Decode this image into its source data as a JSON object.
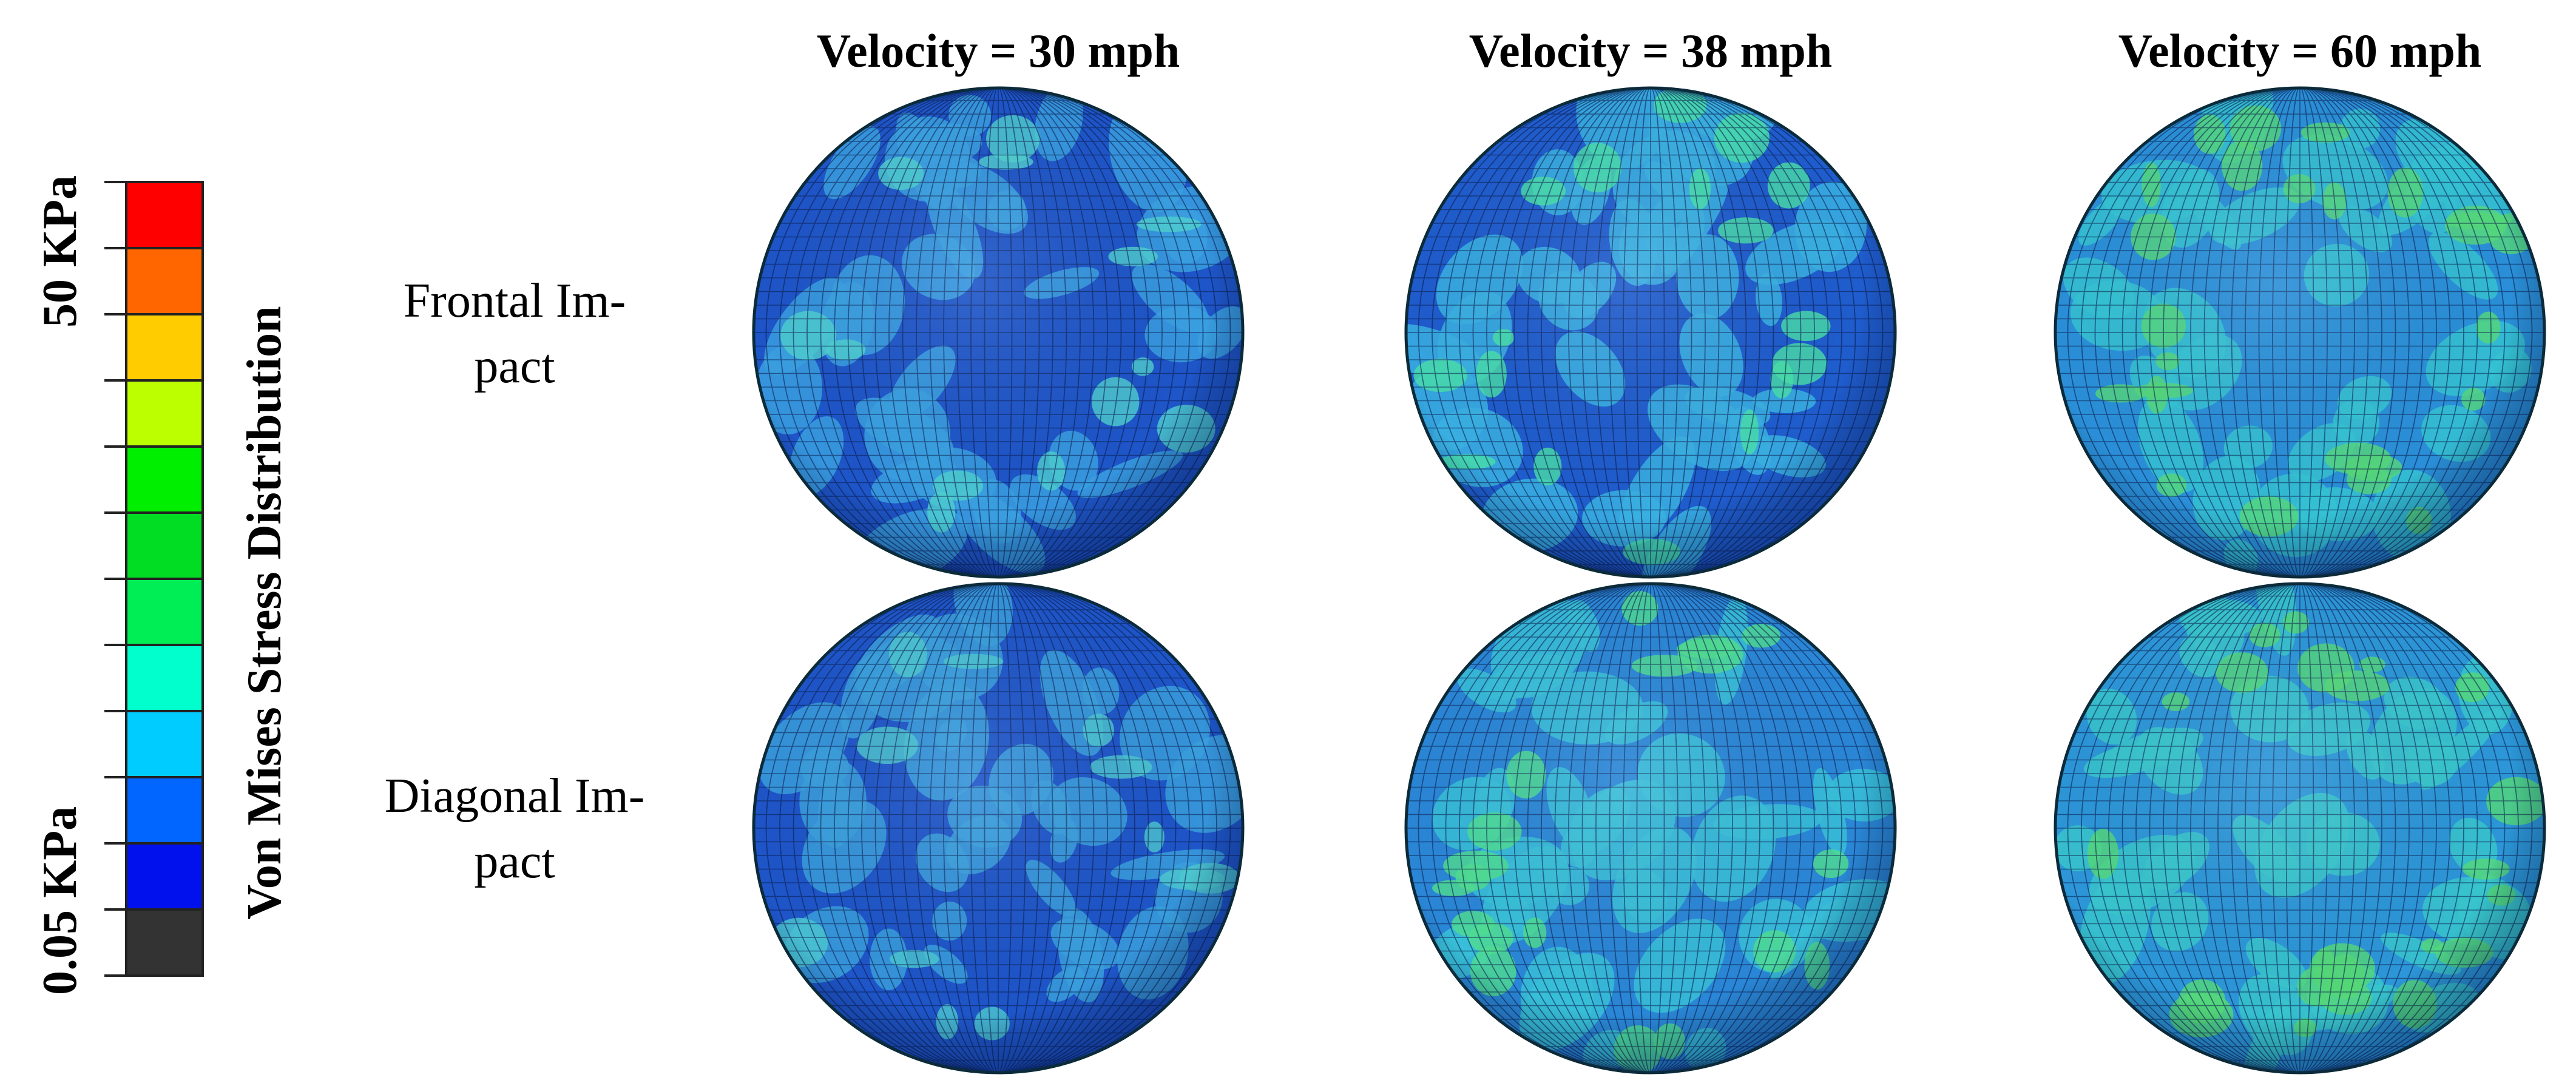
{
  "legend": {
    "title": "Von Mises Stress Distribution",
    "max_label": "50 KPa",
    "min_label": "0.05 KPa",
    "colors": [
      "#ff0000",
      "#ff6600",
      "#ffcc00",
      "#bbff00",
      "#00ee00",
      "#00dd22",
      "#00ee55",
      "#00ffcc",
      "#00ccff",
      "#0066ff",
      "#0011ee",
      "#333333"
    ]
  },
  "columns": [
    {
      "label": "Velocity = 30 mph"
    },
    {
      "label": "Velocity = 38 mph"
    },
    {
      "label": "Velocity = 60 mph"
    }
  ],
  "rows": [
    {
      "label_line1": "Frontal Im-",
      "label_line2": "pact"
    },
    {
      "label_line1": "Diagonal Im-",
      "label_line2": "pact"
    }
  ],
  "panels": [
    {
      "row": 0,
      "col": 0,
      "base": "#1e55c8",
      "light": "#3aa0e0",
      "hot": "#4fd0d0",
      "stress": 0.15
    },
    {
      "row": 0,
      "col": 1,
      "base": "#1f5ccd",
      "light": "#3ab0e2",
      "hot": "#49e0a8",
      "stress": 0.3
    },
    {
      "row": 0,
      "col": 2,
      "base": "#2a8fd8",
      "light": "#35c2d2",
      "hot": "#55d77a",
      "stress": 0.55
    },
    {
      "row": 1,
      "col": 0,
      "base": "#1e55c8",
      "light": "#3a9fdc",
      "hot": "#4cc8d0",
      "stress": 0.12
    },
    {
      "row": 1,
      "col": 1,
      "base": "#2a86d6",
      "light": "#38c0d8",
      "hot": "#50dd90",
      "stress": 0.35
    },
    {
      "row": 1,
      "col": 2,
      "base": "#2c96d8",
      "light": "#38c6cc",
      "hot": "#55d878",
      "stress": 0.5
    }
  ]
}
